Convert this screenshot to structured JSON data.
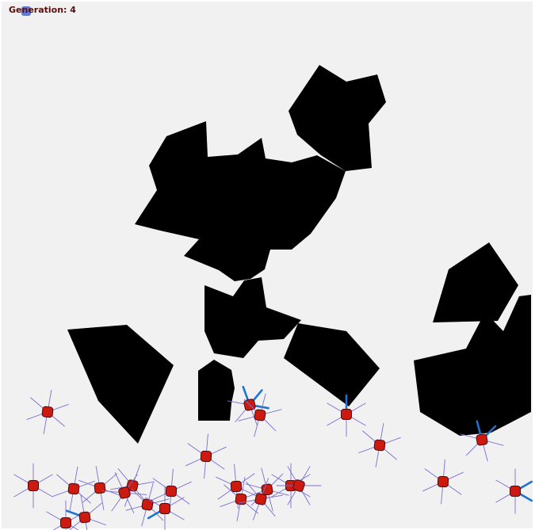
{
  "hud": {
    "label": "Generation:",
    "generation": "4",
    "marker_color": "#4e6fd3"
  },
  "colors": {
    "background": "#f1f1f1",
    "obstacle": "#000000",
    "creature_body": "#cc1a10",
    "creature_outline": "#4a0b0b",
    "sensor_idle": "#7a6fd0",
    "sensor_hit": "#1e73d2"
  },
  "icons": {
    "creature": "red-rounded-square-creature-icon",
    "hud_marker": "blue-rounded-square-icon"
  }
}
